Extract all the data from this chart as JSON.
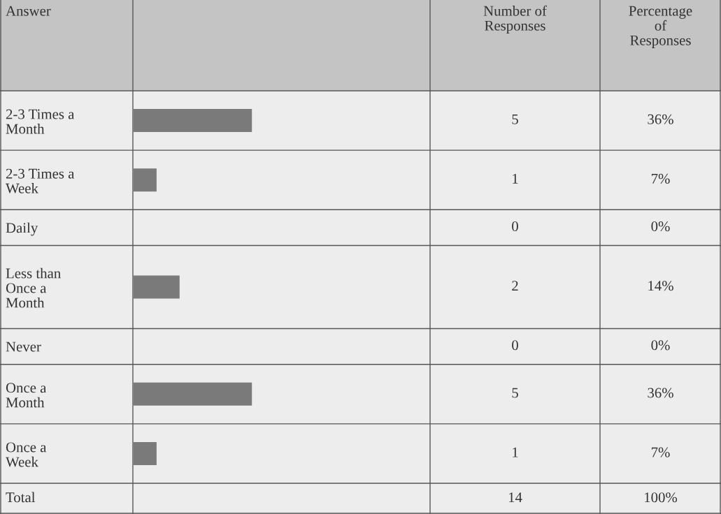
{
  "chart_data": {
    "type": "bar",
    "orientation": "horizontal",
    "categories": [
      "2-3 Times a Month",
      "2-3 Times a Week",
      "Daily",
      "Less than Once a Month",
      "Never",
      "Once a Month",
      "Once a Week"
    ],
    "values": [
      36,
      7,
      0,
      14,
      0,
      36,
      7
    ],
    "color": "#7a7a7a",
    "value_labels": [
      "36%",
      "7%",
      "0%",
      "14%",
      "0%",
      "36%",
      "7%"
    ],
    "annotations": [
      "Answer",
      "Number of Responses",
      "Percentage of Responses",
      "Total",
      "14",
      "100%",
      "5",
      "1",
      "0",
      "2",
      "0",
      "5",
      "1"
    ]
  }
}
